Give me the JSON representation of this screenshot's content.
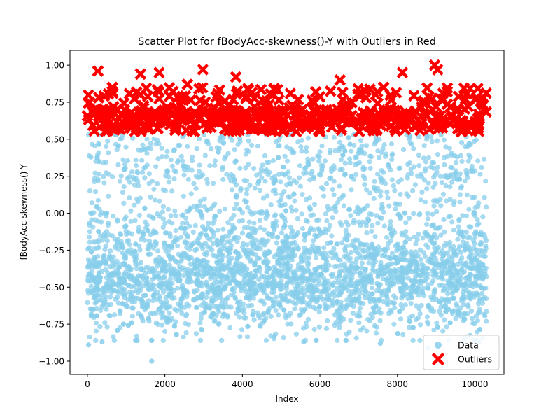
{
  "chart_data": {
    "type": "scatter",
    "title": "Scatter Plot for fBodyAcc-skewness()-Y with Outliers in Red",
    "xlabel": "Index",
    "ylabel": "fBodyAcc-skewness()-Y",
    "xlim": [
      -450,
      10750
    ],
    "ylim": [
      -1.09,
      1.1
    ],
    "xticks": [
      0,
      2000,
      4000,
      6000,
      8000,
      10000
    ],
    "xtick_labels": [
      "0",
      "2000",
      "4000",
      "6000",
      "8000",
      "10000"
    ],
    "yticks": [
      -1.0,
      -0.75,
      -0.5,
      -0.25,
      0.0,
      0.25,
      0.5,
      0.75,
      1.0
    ],
    "ytick_labels": [
      "−1.00",
      "−0.75",
      "−0.50",
      "−0.25",
      "0.00",
      "0.25",
      "0.50",
      "0.75",
      "1.00"
    ],
    "grid": false,
    "legend_position": "bottom-right",
    "series": [
      {
        "name": "Data",
        "color": "#87CEEB",
        "marker": "circle",
        "alpha": 0.75,
        "n_points": 10299,
        "x_range": [
          0,
          10298
        ],
        "y_range": [
          -1.0,
          0.54
        ],
        "approx_distribution": "dense between -0.80 and 0.50, median near -0.40",
        "notable_points": [
          {
            "x": 1660,
            "y": -1.0
          },
          {
            "x": 8800,
            "y": -0.91
          },
          {
            "x": 380,
            "y": -0.87
          },
          {
            "x": 5580,
            "y": -0.87
          },
          {
            "x": 7560,
            "y": -0.88
          },
          {
            "x": 10100,
            "y": -0.87
          },
          {
            "x": 30,
            "y": -0.89
          }
        ]
      },
      {
        "name": "Outliers",
        "color": "#FF0000",
        "marker": "X",
        "condition": "y > 0.54",
        "y_range": [
          0.55,
          1.0
        ],
        "notable_points": [
          {
            "x": 270,
            "y": 0.96
          },
          {
            "x": 2980,
            "y": 0.97
          },
          {
            "x": 3830,
            "y": 0.92
          },
          {
            "x": 8960,
            "y": 1.0
          },
          {
            "x": 9040,
            "y": 0.97
          },
          {
            "x": 8130,
            "y": 0.95
          },
          {
            "x": 1370,
            "y": 0.94
          },
          {
            "x": 1850,
            "y": 0.95
          },
          {
            "x": 6520,
            "y": 0.9
          },
          {
            "x": 2580,
            "y": 0.87
          },
          {
            "x": 4830,
            "y": 0.84
          },
          {
            "x": 10040,
            "y": 0.78
          }
        ]
      }
    ]
  }
}
